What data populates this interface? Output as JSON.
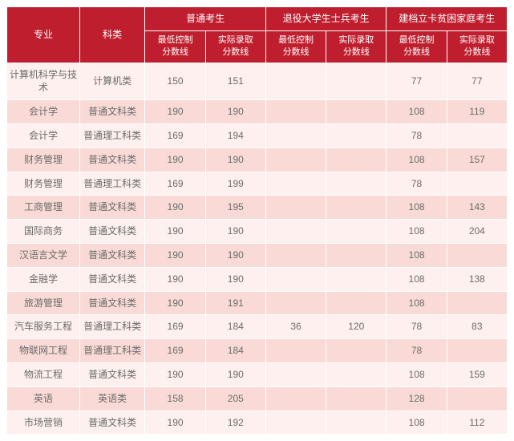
{
  "style": {
    "header_bg": "#bf1e2e",
    "header_fg": "#ffffff",
    "row_even_bg": "#fef0ee",
    "row_odd_bg": "#f9dad6",
    "cell_fg": "#6b6b6b",
    "border_color": "#ffffff",
    "font_size_header": 12,
    "font_size_sub": 11,
    "font_size_cell": 12
  },
  "header": {
    "col_major": "专业",
    "col_category": "科类",
    "groups": [
      {
        "title": "普通考生",
        "sub": [
          "最低控制\n分数线",
          "实际录取\n分数线"
        ]
      },
      {
        "title": "退役大学生士兵考生",
        "sub": [
          "最低控制\n分数线",
          "实际录取\n分数线"
        ]
      },
      {
        "title": "建档立卡贫困家庭考生",
        "sub": [
          "最低控制\n分数线",
          "实际录取\n分数线"
        ]
      }
    ]
  },
  "rows": [
    {
      "major": "计算机科学与技术",
      "cat": "计算机类",
      "v": [
        "150",
        "151",
        "",
        "",
        "77",
        "77"
      ]
    },
    {
      "major": "会计学",
      "cat": "普通文科类",
      "v": [
        "190",
        "190",
        "",
        "",
        "108",
        "119"
      ]
    },
    {
      "major": "会计学",
      "cat": "普通理工科类",
      "v": [
        "169",
        "194",
        "",
        "",
        "78",
        ""
      ]
    },
    {
      "major": "财务管理",
      "cat": "普通文科类",
      "v": [
        "190",
        "190",
        "",
        "",
        "108",
        "157"
      ]
    },
    {
      "major": "财务管理",
      "cat": "普通理工科类",
      "v": [
        "169",
        "199",
        "",
        "",
        "78",
        ""
      ]
    },
    {
      "major": "工商管理",
      "cat": "普通文科类",
      "v": [
        "190",
        "195",
        "",
        "",
        "108",
        "143"
      ]
    },
    {
      "major": "国际商务",
      "cat": "普通文科类",
      "v": [
        "190",
        "190",
        "",
        "",
        "108",
        "204"
      ]
    },
    {
      "major": "汉语言文学",
      "cat": "普通文科类",
      "v": [
        "190",
        "190",
        "",
        "",
        "108",
        ""
      ]
    },
    {
      "major": "金融学",
      "cat": "普通文科类",
      "v": [
        "190",
        "190",
        "",
        "",
        "108",
        "138"
      ]
    },
    {
      "major": "旅游管理",
      "cat": "普通文科类",
      "v": [
        "190",
        "191",
        "",
        "",
        "108",
        ""
      ]
    },
    {
      "major": "汽车服务工程",
      "cat": "普通理工科类",
      "v": [
        "169",
        "184",
        "36",
        "120",
        "78",
        "83"
      ]
    },
    {
      "major": "物联网工程",
      "cat": "普通理工科类",
      "v": [
        "169",
        "184",
        "",
        "",
        "78",
        ""
      ]
    },
    {
      "major": "物流工程",
      "cat": "普通文科类",
      "v": [
        "190",
        "190",
        "",
        "",
        "108",
        "159"
      ]
    },
    {
      "major": "英语",
      "cat": "英语类",
      "v": [
        "158",
        "205",
        "",
        "",
        "128",
        ""
      ]
    },
    {
      "major": "市场营销",
      "cat": "普通文科类",
      "v": [
        "190",
        "192",
        "",
        "",
        "108",
        "112"
      ]
    }
  ]
}
